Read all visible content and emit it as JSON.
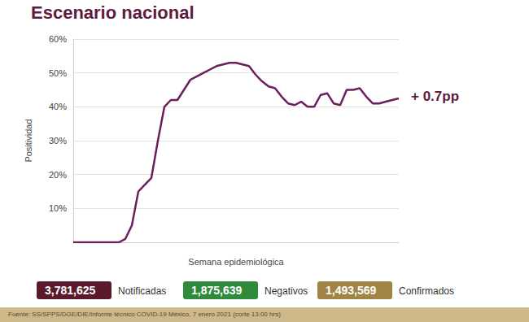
{
  "chart_data": {
    "type": "line",
    "title": "Escenario nacional",
    "y_label": "Positividad",
    "x_label": "Semana epidemiológica",
    "categories": [
      null,
      null,
      null,
      null,
      null,
      null,
      null,
      null,
      null,
      null,
      null,
      null,
      null,
      null,
      null,
      null,
      null,
      null,
      null,
      null,
      null,
      null,
      null,
      null,
      null,
      null,
      null,
      null,
      null,
      null,
      null,
      null,
      null,
      null,
      null,
      null,
      null,
      null,
      null,
      null,
      null,
      null,
      null,
      null,
      null,
      null,
      null,
      null,
      null,
      null,
      null
    ],
    "values": [
      0,
      0,
      0,
      0,
      0,
      0,
      0,
      0,
      1,
      5,
      15,
      17,
      19,
      30,
      40,
      42,
      42,
      45,
      48,
      49,
      50,
      51,
      52,
      52.5,
      53,
      53,
      52.5,
      52,
      49.5,
      47.5,
      46,
      45.5,
      43,
      41,
      40.5,
      41.5,
      40,
      40,
      43.5,
      44,
      41,
      40.5,
      45,
      45,
      45.5,
      43,
      41,
      41,
      41.5,
      42,
      42.5
    ],
    "color": "#6b1f5c",
    "ylim": [
      0,
      60
    ],
    "yticks": [
      {
        "value": 10,
        "label": "10%"
      },
      {
        "value": 20,
        "label": "20%"
      },
      {
        "value": 30,
        "label": "30%"
      },
      {
        "value": 40,
        "label": "40%"
      },
      {
        "value": 50,
        "label": "50%"
      },
      {
        "value": 60,
        "label": "60%"
      }
    ],
    "grid": true,
    "tick_labels": "y",
    "annotation": "+ 0.7pp"
  },
  "summary": [
    {
      "value": "3,781,625",
      "label": "Notificadas",
      "color": "#5a1a2c"
    },
    {
      "value": "1,875,639",
      "label": "Negativos",
      "color": "#2f8a3c"
    },
    {
      "value": "1,493,569",
      "label": "Confirmados",
      "color": "#a08446"
    }
  ],
  "source": "Fuente: SS/SPPS/DGE/DIE/Informe técnico COVID-19 México, 7 enero 2021 (corte 13:00 hrs)"
}
